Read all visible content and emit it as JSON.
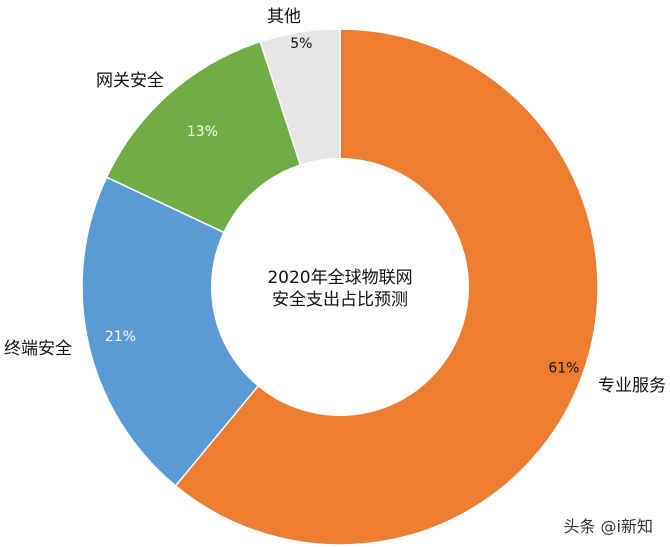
{
  "chart_data": {
    "type": "pie",
    "variant": "donut",
    "center_title_lines": [
      "2020年全球物联网",
      "安全支出占比预测"
    ],
    "categories": [
      "专业服务",
      "终端安全",
      "网关安全",
      "其他"
    ],
    "values": [
      61,
      21,
      13,
      5
    ],
    "value_labels": [
      "61%",
      "21%",
      "13%",
      "5%"
    ],
    "colors": [
      "#ED7D31",
      "#5B9BD5",
      "#70AD47",
      "#E7E6E6"
    ],
    "label_colors": [
      "#111111",
      "#ffffff",
      "#ffffff",
      "#111111"
    ],
    "start_angle_deg": 0,
    "direction": "clockwise",
    "legend": "none"
  },
  "watermark": "头条 @i新知"
}
